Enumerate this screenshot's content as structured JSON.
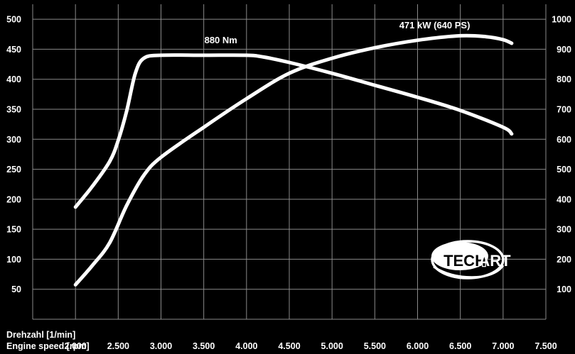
{
  "chart_data": {
    "type": "line",
    "title": "",
    "xlabel": [
      "Drehzahl [1/min]",
      "Engine speed [rpm]"
    ],
    "x_ticks": [
      "2.000",
      "2.500",
      "3.000",
      "3.500",
      "4.000",
      "4.500",
      "5.000",
      "5.500",
      "6.000",
      "6.500",
      "7.000",
      "7.500"
    ],
    "x_tick_values": [
      2000,
      2500,
      3000,
      3500,
      4000,
      4500,
      5000,
      5500,
      6000,
      6500,
      7000,
      7500
    ],
    "xlim": [
      1500,
      7500
    ],
    "y_left": {
      "label": "",
      "ticks": [
        "50",
        "100",
        "150",
        "200",
        "250",
        "300",
        "350",
        "400",
        "450",
        "500"
      ],
      "ylim": [
        0,
        525
      ]
    },
    "y_right": {
      "label": "",
      "ticks": [
        "100",
        "200",
        "300",
        "400",
        "500",
        "600",
        "700",
        "800",
        "900",
        "1000"
      ],
      "ylim": [
        0,
        1050
      ]
    },
    "grid": true,
    "series": [
      {
        "axis": "left",
        "x": [
          2000,
          2200,
          2400,
          2500,
          2600,
          2700,
          2800,
          3000,
          3500,
          4000,
          4200,
          4500,
          5000,
          5500,
          6000,
          6500,
          7000,
          7100
        ],
        "values": [
          187,
          222,
          263,
          298,
          348,
          410,
          435,
          440,
          440,
          440,
          437,
          428,
          410,
          390,
          370,
          348,
          320,
          309
        ]
      },
      {
        "axis": "right",
        "x": [
          2000,
          2200,
          2400,
          2600,
          2800,
          3000,
          3500,
          4000,
          4500,
          5000,
          5500,
          6000,
          6500,
          6800,
          7000,
          7100
        ],
        "values": [
          115,
          180,
          255,
          380,
          480,
          540,
          640,
          735,
          820,
          870,
          905,
          930,
          945,
          942,
          932,
          920
        ]
      }
    ],
    "annotations": [
      {
        "text": "880 Nm",
        "x": 3700,
        "y_left": 460
      },
      {
        "text": "471 kW (640 PS)",
        "x": 6200,
        "y_left": 485
      }
    ]
  },
  "logo": {
    "text": "TECHART"
  }
}
